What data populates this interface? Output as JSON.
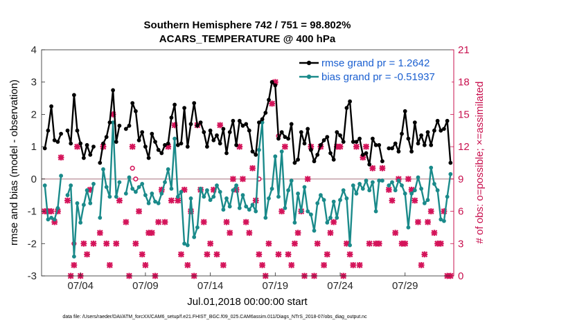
{
  "chart_data": {
    "type": "line",
    "title_line1": "Southern Hemisphere 742 / 751 = 98.802%",
    "title_line2": "ACARS_TEMPERATURE @ 400 hPa",
    "xlabel": "Jul.01,2018 00:00:00 start",
    "ylabel_left": "rmse and bias (model - observation)",
    "ylabel_right": "# of obs: o=possible; ×=assimilated",
    "footer": "data file: /Users/raeder/DAI/ATM_forcXX/CAM6_setup/f.e21.FHIST_BGC.f09_025.CAM6assim.011/Diags_NTrS_2018-07/obs_diag_output.nc",
    "x_range": [
      1,
      32.75
    ],
    "ylim_left": [
      -3,
      4
    ],
    "ylim_right": [
      0,
      21
    ],
    "x_ticks": [
      {
        "value": 4,
        "label": "07/04"
      },
      {
        "value": 9,
        "label": "07/09"
      },
      {
        "value": 14,
        "label": "07/14"
      },
      {
        "value": 19,
        "label": "07/19"
      },
      {
        "value": 24,
        "label": "07/24"
      },
      {
        "value": 29,
        "label": "07/29"
      }
    ],
    "y_ticks_left": [
      "-3",
      "-2",
      "-1",
      "0",
      "1",
      "2",
      "3",
      "4"
    ],
    "y_ticks_right": [
      "0",
      "3",
      "6",
      "9",
      "12",
      "15",
      "18",
      "21"
    ],
    "colors": {
      "rmse": "#000000",
      "bias": "#1a8a8a",
      "obs": "#d4145a",
      "zero_line": "#c8a6ae",
      "legend_text": "#1a5fd0",
      "right_axis": "#c8104e"
    },
    "series": [
      {
        "name": "rmse",
        "legend": "rmse grand pr = 1.2642",
        "x_start": 1.25,
        "x_step": 0.25,
        "values": [
          0.95,
          1.5,
          2.25,
          1.2,
          1.15,
          1.4,
          null,
          1.5,
          1.1,
          2.6,
          1.5,
          1.1,
          0.65,
          1.05,
          0.75,
          1.0,
          null,
          0.5,
          1.1,
          1.3,
          1.75,
          2.75,
          1.15,
          1.65,
          null,
          1.55,
          1.65,
          2.35,
          2.1,
          1.2,
          1.45,
          1.0,
          0.65,
          1.4,
          1.15,
          0.9,
          0.8,
          1.05,
          1.1,
          1.9,
          2.3,
          1.05,
          1.1,
          2.2,
          1.0,
          1.7,
          2.35,
          1.65,
          1.75,
          1.45,
          1.0,
          1.5,
          1.2,
          1.35,
          1.1,
          1.55,
          0.8,
          1.45,
          1.8,
          1.05,
          1.8,
          1.65,
          1.7,
          1.5,
          0.85,
          0.75,
          1.75,
          1.85,
          2.05,
          2.45,
          3.0,
          2.9,
          1.25,
          1.45,
          1.3,
          1.25,
          1.7,
          0.5,
          0.6,
          1.45,
          1.1,
          1.55,
          0.9,
          0.55,
          0.75,
          1.05,
          1.2,
          1.3,
          0.8,
          0.6,
          1.45,
          1.35,
          1.15,
          2.2,
          2.4,
          1.15,
          1.15,
          1.25,
          0.75,
          0.8,
          0.45,
          1.25,
          1.05,
          1.05,
          0.55,
          null,
          0.95,
          0.95,
          1.1,
          0.85,
          1.4,
          2.1,
          1.25,
          0.85,
          1.75,
          1.1,
          1.35,
          1.05,
          1.45,
          1.05,
          1.5,
          1.8,
          1.5,
          1.55,
          1.8,
          0.5
        ]
      },
      {
        "name": "bias",
        "legend": "bias grand pr = -0.51937",
        "x_start": 1.25,
        "x_step": 0.25,
        "values": [
          -0.2,
          -1.25,
          -1.2,
          -1.25,
          -0.9,
          0.1,
          null,
          -0.5,
          -0.2,
          -2.4,
          -0.75,
          -1.35,
          -0.8,
          -0.35,
          -0.75,
          -0.15,
          null,
          -1.2,
          0.3,
          -0.25,
          -0.55,
          1.75,
          -0.55,
          -0.1,
          null,
          -0.45,
          0.05,
          -0.3,
          -0.4,
          -0.25,
          -0.15,
          -0.5,
          -0.75,
          -0.45,
          -0.7,
          -0.75,
          -0.45,
          -0.1,
          0.3,
          -0.3,
          1.25,
          -0.55,
          -0.4,
          -2.0,
          -2.05,
          -0.6,
          -1.8,
          -1.5,
          -0.3,
          -0.55,
          -0.35,
          -0.65,
          -0.55,
          -0.2,
          -0.4,
          -0.95,
          -0.6,
          -0.85,
          -0.35,
          -0.2,
          -0.9,
          -0.5,
          -0.85,
          -0.95,
          -0.8,
          -1.0,
          0.9,
          1.75,
          -1.2,
          -0.6,
          -0.3,
          0.7,
          -0.55,
          0.85,
          -0.9,
          -0.35,
          -0.05,
          -1.35,
          -0.45,
          -1.0,
          -0.25,
          -1.0,
          -1.1,
          -1.6,
          -0.75,
          -0.5,
          -0.65,
          -1.35,
          -1.2,
          -0.7,
          -1.2,
          -0.65,
          -0.35,
          -0.6,
          -2.05,
          -0.2,
          -0.45,
          -0.15,
          -0.3,
          -0.05,
          -0.35,
          -0.1,
          -1.0,
          -0.05,
          -0.05,
          null,
          -0.2,
          -0.1,
          -0.35,
          -0.05,
          -0.2,
          -0.45,
          -1.5,
          -0.45,
          -0.35,
          0.05,
          -0.3,
          -0.75,
          -0.65,
          0.35,
          -0.15,
          -0.35,
          -1.25,
          -1.3,
          -0.55,
          0.15
        ]
      }
    ],
    "obs_counts": {
      "assimilated_x_start": 1.25,
      "assimilated_x_step": 0.25,
      "assimilated": [
        6,
        6,
        6,
        5,
        6,
        11,
        null,
        7,
        0,
        1,
        12,
        0,
        3,
        2,
        8,
        3,
        null,
        4,
        12,
        3,
        1,
        15,
        3,
        7,
        null,
        5,
        0,
        12,
        3,
        6,
        2,
        1,
        4,
        4,
        0,
        5,
        8,
        5,
        12,
        7,
        14,
        7,
        2,
        8,
        1,
        6,
        0,
        14,
        8,
        5,
        2,
        3,
        8,
        2,
        14,
        1,
        5,
        4,
        9,
        8,
        12,
        9,
        5,
        4,
        10,
        7,
        2,
        1,
        0,
        3,
        16,
        18,
        2,
        6,
        12,
        2,
        1,
        3,
        4,
        6,
        0,
        9,
        12,
        0,
        3,
        12,
        1,
        2,
        4,
        5,
        12,
        12,
        0,
        3,
        2,
        1,
        12,
        1,
        11,
        12,
        3,
        10,
        3,
        3,
        10,
        null,
        8,
        7,
        4,
        9,
        3,
        3,
        9,
        8,
        7,
        5,
        1,
        2,
        5,
        6,
        4,
        3,
        3,
        6,
        0,
        0
      ],
      "possible": [
        {
          "x": 3.5,
          "value": 3
        },
        {
          "x": 8.25,
          "value": 9
        },
        {
          "x": 17.75,
          "value": 9
        },
        {
          "x": 19.25,
          "value": 13
        },
        {
          "x": 8.0,
          "value": 10
        }
      ]
    }
  }
}
